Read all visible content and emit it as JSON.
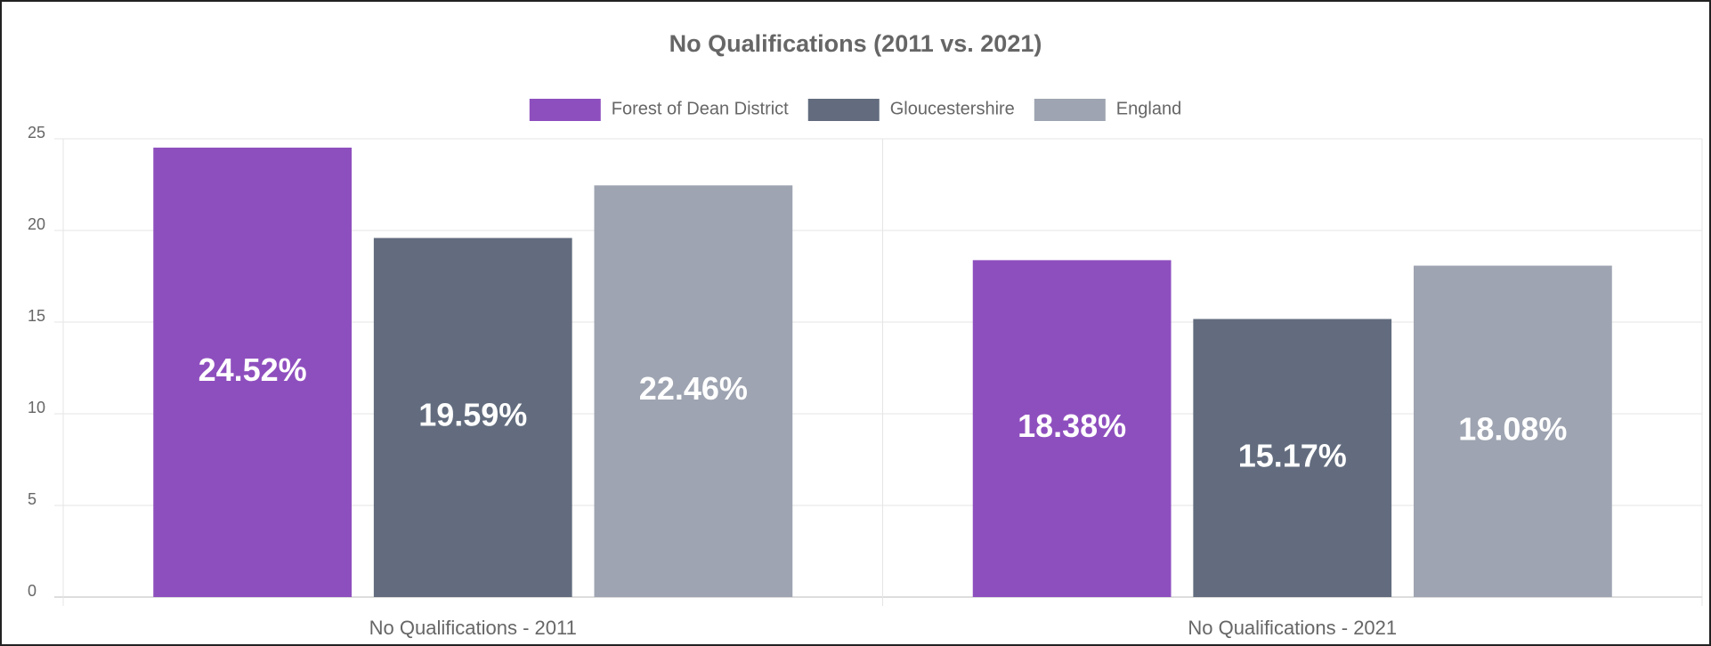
{
  "chart_data": {
    "type": "bar",
    "title": "No Qualifications (2011 vs. 2021)",
    "categories": [
      "No Qualifications - 2011",
      "No Qualifications - 2021"
    ],
    "series": [
      {
        "name": "Forest of Dean District",
        "color": "#8e4fbe",
        "values": [
          24.52,
          18.38
        ],
        "value_labels": [
          "24.52%",
          "18.38%"
        ]
      },
      {
        "name": "Gloucestershire",
        "color": "#626c7e",
        "values": [
          19.59,
          15.17
        ],
        "value_labels": [
          "19.59%",
          "15.17%"
        ]
      },
      {
        "name": "England",
        "color": "#9ea4b1",
        "values": [
          22.46,
          18.08
        ],
        "value_labels": [
          "22.46%",
          "18.08%"
        ]
      }
    ],
    "ylim": [
      0,
      25
    ],
    "yticks": [
      0,
      5,
      10,
      15,
      20,
      25
    ],
    "grid": true,
    "legend": "top"
  }
}
